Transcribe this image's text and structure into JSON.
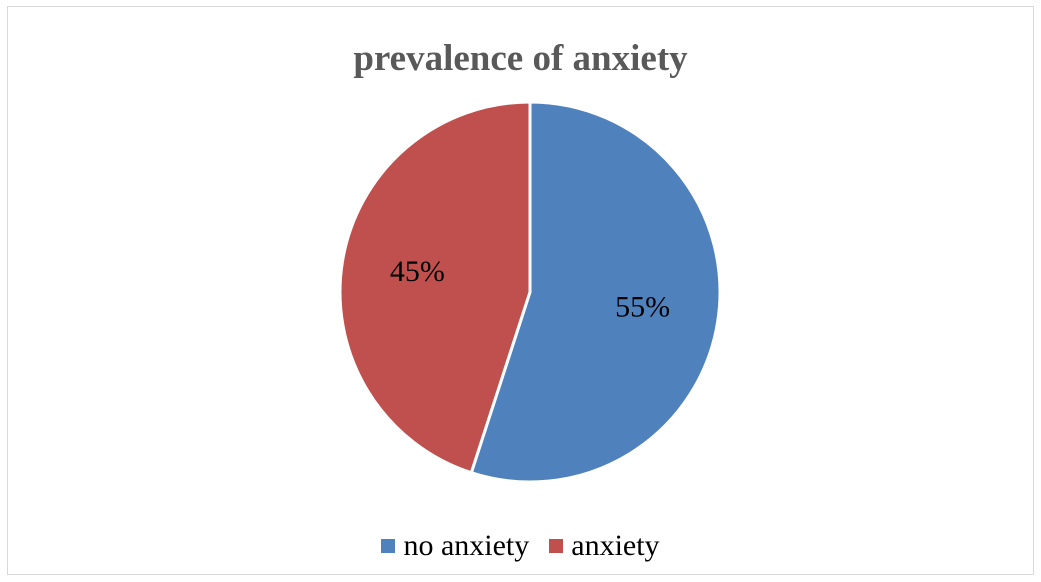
{
  "chart_data": {
    "type": "pie",
    "title": "prevalence of anxiety",
    "categories": [
      "no anxiety",
      "anxiety"
    ],
    "values": [
      55,
      45
    ],
    "data_labels": [
      "55%",
      "45%"
    ],
    "colors": [
      "#4F81BD",
      "#C0504D"
    ],
    "legend_position": "bottom"
  }
}
